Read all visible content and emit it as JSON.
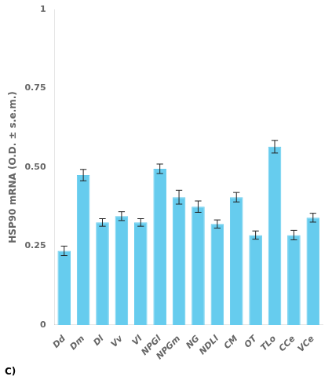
{
  "chart_data": {
    "type": "bar",
    "categories": [
      "Dd",
      "Dm",
      "Dl",
      "Vv",
      "Vl",
      "NPGl",
      "NPGm",
      "NG",
      "NDLl",
      "CM",
      "OT",
      "TLo",
      "CCe",
      "VCe"
    ],
    "values": [
      0.235,
      0.475,
      0.325,
      0.345,
      0.325,
      0.495,
      0.405,
      0.375,
      0.32,
      0.405,
      0.285,
      0.565,
      0.285,
      0.34
    ],
    "errors": [
      0.015,
      0.018,
      0.012,
      0.014,
      0.012,
      0.015,
      0.022,
      0.018,
      0.013,
      0.015,
      0.013,
      0.02,
      0.015,
      0.014
    ],
    "color": "#66CCEE",
    "ylabel": "HSP90 mRNA (O.D. ± s.e.m.)",
    "ylim": [
      0,
      1.0
    ],
    "yticks": [
      0,
      0.25,
      {
        "value": 0.5,
        "label": "0.50"
      },
      0.75,
      1
    ],
    "grid": false,
    "annotations": [
      "C)"
    ]
  }
}
